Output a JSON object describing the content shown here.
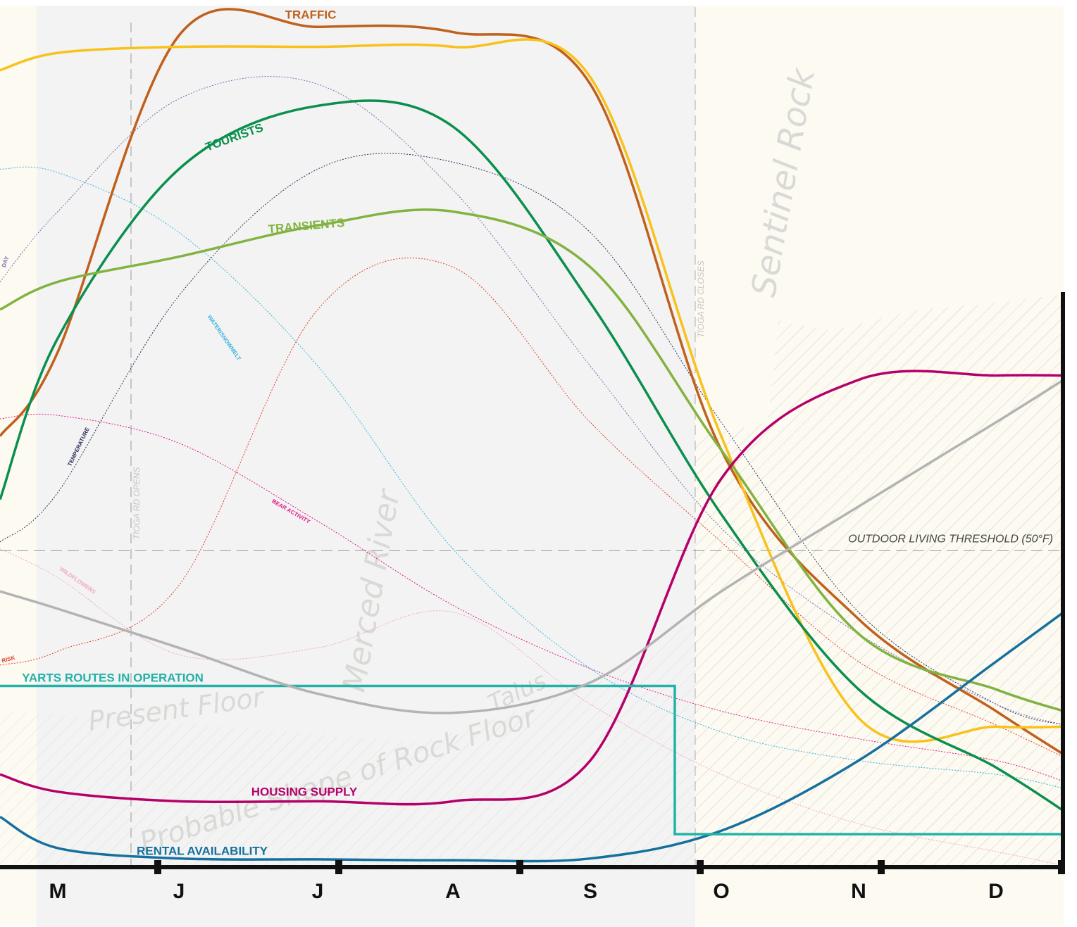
{
  "chart_data": {
    "type": "line",
    "categories": [
      null,
      "M",
      "J",
      "J",
      "A",
      "S",
      "O",
      "N",
      "D",
      null
    ],
    "ylim": [
      0,
      100
    ],
    "series": [
      {
        "name": "TRAFFIC",
        "color": "#c0601c",
        "line_style": "solid",
        "values": [
          49.7,
          59.4,
          95.9,
          96.9,
          96.3,
          90.3,
          48.1,
          28.6,
          18.0,
          13.0
        ]
      },
      {
        "color": "#f8c21b",
        "line_style": "solid",
        "values": [
          91.9,
          93.9,
          94.6,
          94.6,
          94.6,
          91.1,
          49.7,
          17.2,
          16.2,
          16.2
        ]
      },
      {
        "name": "TOURISTS",
        "color": "#0a8f4e",
        "line_style": "solid",
        "values": [
          42.4,
          61.0,
          80.5,
          87.8,
          85.4,
          65.1,
          40.7,
          20.5,
          11.5,
          6.5
        ]
      },
      {
        "name": "TRANSIENTS",
        "color": "#82b341",
        "line_style": "solid",
        "values": [
          64.3,
          67.5,
          70.4,
          74.0,
          75.6,
          69.2,
          48.1,
          26.9,
          20.5,
          18.0
        ]
      },
      {
        "name": "HOUSING SUPPLY",
        "color": "#b5006a",
        "line_style": "solid",
        "values": [
          10.7,
          8.7,
          7.6,
          7.6,
          7.6,
          12.3,
          44.8,
          56.2,
          56.7,
          56.7
        ]
      },
      {
        "name": "RENTAL AVAILABILITY",
        "color": "#16709e",
        "line_style": "solid",
        "values": [
          5.8,
          2.2,
          1.0,
          0.9,
          0.8,
          1.0,
          4.2,
          12.3,
          23.7,
          29.4
        ]
      },
      {
        "name": "YARTS ROUTES IN OPERATION",
        "color": "#22b2a8",
        "line_style": "step",
        "values": [
          20.9,
          20.9,
          20.9,
          20.9,
          20.9,
          20.9,
          3.8,
          3.8,
          3.8,
          3.8
        ]
      },
      {
        "color": "#b3b3b3",
        "line_style": "solid",
        "values": [
          31.8,
          29.8,
          25.3,
          20.0,
          17.8,
          21.3,
          31.8,
          41.6,
          51.3,
          56.2
        ]
      },
      {
        "name": "TEMPERATURE",
        "color": "#2a2e5a",
        "line_style": "dotted",
        "values": [
          37.5,
          43.2,
          65.9,
          80.5,
          81.3,
          73.2,
          51.3,
          29.4,
          18.8,
          16.4
        ]
      },
      {
        "name": "DAY",
        "color": "#7a6cb0",
        "line_style": "dotted",
        "values": [
          67.5,
          75.6,
          88.6,
          90.3,
          78.1,
          57.8,
          39.1,
          26.9,
          18.8,
          16.4
        ]
      },
      {
        "name": "WATER/SNOWMELT",
        "color": "#39b4e0",
        "line_style": "dotted",
        "values": [
          80.5,
          80.1,
          73.2,
          57.8,
          36.7,
          22.9,
          15.6,
          12.3,
          10.7,
          9.1
        ]
      },
      {
        "name": "BEAR ACTIVITY",
        "color": "#e01a8c",
        "line_style": "dotted",
        "values": [
          51.7,
          52.1,
          48.9,
          39.9,
          30.2,
          22.9,
          18.0,
          14.8,
          12.3,
          9.9
        ]
      },
      {
        "name": "RISK",
        "color": "#e0402a",
        "line_style": "dotted",
        "values": [
          23.3,
          24.9,
          32.5,
          64.3,
          69.2,
          51.3,
          37.5,
          23.7,
          16.4,
          12.7
        ]
      },
      {
        "name": "WILDFLOWERS",
        "color": "#f2a6c8",
        "line_style": "dotted",
        "values": [
          36.7,
          33.4,
          24.5,
          25.3,
          29.4,
          18.8,
          10.7,
          5.0,
          1.8,
          0.2
        ]
      }
    ],
    "threshold": {
      "label": "OUTDOOR LIVING THRESHOLD (50°F)",
      "value": 36.5
    },
    "markers": [
      "TIOGA RD OPENS",
      "TIOGA RD CLOSES"
    ],
    "annotations": [
      "Sentinel Rock",
      "Merced River",
      "Present Floor",
      "Probable Shape of Rock Floor",
      "Talus"
    ]
  }
}
